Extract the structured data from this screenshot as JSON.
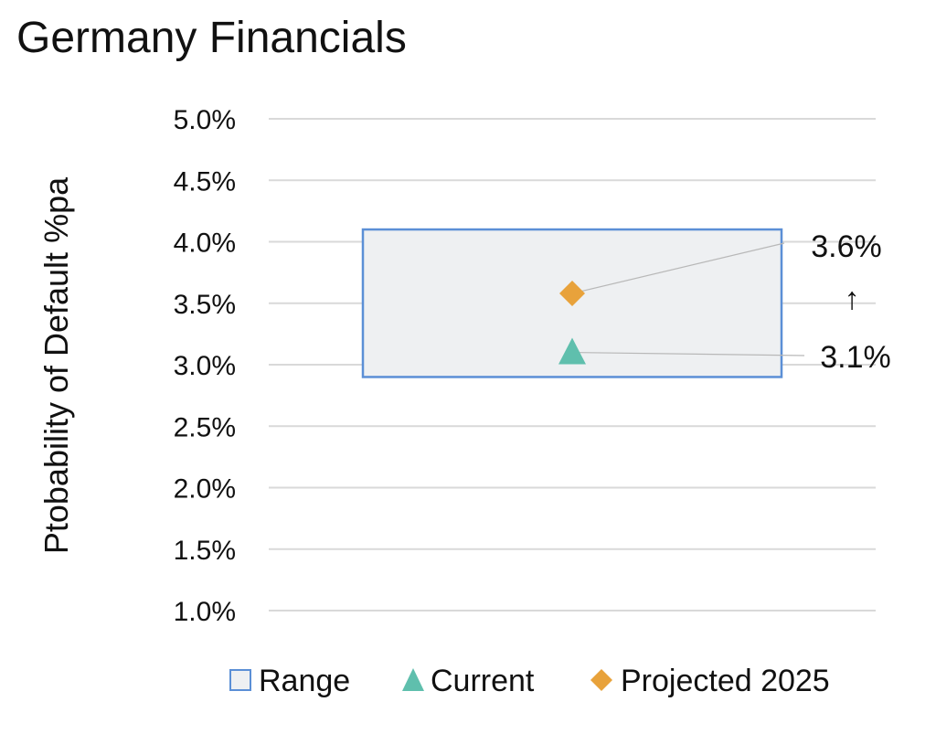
{
  "chart_data": {
    "type": "scatter",
    "title": "Germany Financials",
    "ylabel": "Ptobability of Default %pa",
    "ylim": [
      1.0,
      5.0
    ],
    "yticks": [
      1.0,
      1.5,
      2.0,
      2.5,
      3.0,
      3.5,
      4.0,
      4.5,
      5.0
    ],
    "ytick_labels": [
      "1.0%",
      "1.5%",
      "2.0%",
      "2.5%",
      "3.0%",
      "3.5%",
      "4.0%",
      "4.5%",
      "5.0%"
    ],
    "grid": true,
    "legend_position": "bottom",
    "range": {
      "name": "Range",
      "low": 2.9,
      "high": 4.1,
      "fill": "#eef0f2",
      "stroke": "#5b8fd6"
    },
    "series": [
      {
        "name": "Current",
        "marker": "triangle",
        "value": 3.1,
        "label": "3.1%",
        "color": "#5fbfad"
      },
      {
        "name": "Projected 2025",
        "marker": "diamond",
        "value": 3.58,
        "label": "3.6%",
        "color": "#e8a23b"
      }
    ],
    "arrow_annotation": "↑"
  }
}
